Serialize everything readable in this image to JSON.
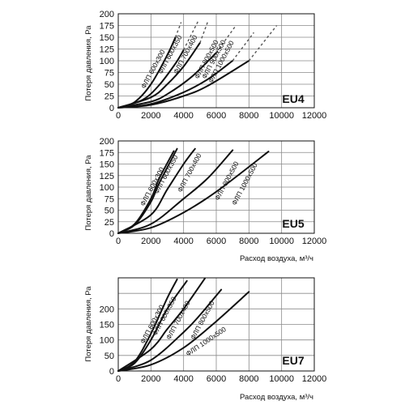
{
  "chart_data": [
    {
      "type": "line",
      "title": "EU4",
      "xlabel": "",
      "ylabel": "Потеря давления, Ра",
      "xlim": [
        0,
        12000
      ],
      "ylim": [
        0,
        200
      ],
      "x_ticks": [
        "0",
        "2000",
        "4000",
        "6000",
        "8000",
        "10000",
        "12000"
      ],
      "y_ticks": [
        "0",
        "25",
        "50",
        "75",
        "100",
        "125",
        "150",
        "175",
        "200"
      ],
      "grid": true,
      "series": [
        {
          "name": "ФЛП 600x300",
          "x": [
            0,
            1000,
            2000,
            3000,
            3500
          ],
          "y": [
            0,
            12,
            50,
            112,
            150
          ],
          "dash_to": [
            3850,
            182
          ]
        },
        {
          "name": "ФЛП 600x350",
          "x": [
            0,
            1500,
            2500,
            3500,
            4000
          ],
          "y": [
            0,
            17,
            48,
            94,
            123
          ],
          "dash_to": [
            4900,
            185
          ]
        },
        {
          "name": "ФЛП 700x400",
          "x": [
            0,
            2000,
            3000,
            4000,
            5000
          ],
          "y": [
            0,
            22,
            50,
            88,
            138
          ],
          "dash_to": [
            5500,
            185
          ]
        },
        {
          "name": "ФЛП 800x500",
          "x": [
            0,
            2000,
            3000,
            4500,
            6000
          ],
          "y": [
            0,
            13,
            29,
            66,
            117
          ],
          "dash_to": [
            7200,
            175
          ]
        },
        {
          "name": "ФЛП 900x500",
          "x": [
            0,
            2000,
            4000,
            5500,
            7000
          ],
          "y": [
            0,
            8,
            33,
            61,
            100
          ],
          "dash_to": [
            8300,
            160
          ]
        },
        {
          "name": "ФЛП 1000x500",
          "x": [
            0,
            2000,
            4000,
            5500,
            8000
          ],
          "y": [
            0,
            6,
            25,
            47,
            100
          ],
          "dash_to": [
            9700,
            175
          ]
        }
      ]
    },
    {
      "type": "line",
      "title": "EU5",
      "xlabel": "Расход воздуха, м³/ч",
      "ylabel": "Потеря давления, Ра",
      "xlim": [
        0,
        12000
      ],
      "ylim": [
        0,
        200
      ],
      "x_ticks": [
        "0",
        "2000",
        "4000",
        "6000",
        "8000",
        "10000",
        "12000"
      ],
      "y_ticks": [
        "0",
        "25",
        "50",
        "75",
        "100",
        "125",
        "150",
        "175",
        "200"
      ],
      "grid": true,
      "series": [
        {
          "name": "ФЛП 600x300",
          "x": [
            0,
            1000,
            2000,
            2500,
            3400
          ],
          "y": [
            0,
            20,
            75,
            118,
            178
          ]
        },
        {
          "name": "ФЛП 600x350",
          "x": [
            0,
            1000,
            2000,
            2500,
            3600
          ],
          "y": [
            0,
            18,
            68,
            108,
            183
          ]
        },
        {
          "name": "ФЛП 700x400",
          "x": [
            0,
            2000,
            3000,
            4000,
            4700
          ],
          "y": [
            0,
            40,
            95,
            150,
            183
          ]
        },
        {
          "name": "ФЛП 800x500",
          "x": [
            0,
            2000,
            4000,
            5500,
            7000
          ],
          "y": [
            0,
            20,
            75,
            120,
            180
          ]
        },
        {
          "name": "ФЛП 1000x500",
          "x": [
            0,
            2000,
            4000,
            6000,
            9200
          ],
          "y": [
            0,
            12,
            45,
            90,
            177
          ]
        }
      ]
    },
    {
      "type": "line",
      "title": "EU7",
      "xlabel": "Расход воздуха, м³/ч",
      "ylabel": "Потеря давления, Ра",
      "xlim": [
        0,
        12000
      ],
      "ylim": [
        0,
        300
      ],
      "x_ticks": [
        "0",
        "2000",
        "4000",
        "6000",
        "8000",
        "10000",
        "12000"
      ],
      "y_ticks": [
        "0",
        "50",
        "100",
        "150",
        "200"
      ],
      "grid": true,
      "series": [
        {
          "name": "ФЛП 600x300",
          "x": [
            0,
            1000,
            2000,
            3000,
            3600
          ],
          "y": [
            0,
            30,
            120,
            235,
            295
          ]
        },
        {
          "name": "ФЛП 600x350",
          "x": [
            0,
            1000,
            2000,
            3000,
            4200
          ],
          "y": [
            0,
            25,
            100,
            200,
            290
          ]
        },
        {
          "name": "ФЛП 700x400",
          "x": [
            0,
            2000,
            3000,
            4000,
            5300
          ],
          "y": [
            0,
            70,
            135,
            200,
            298
          ]
        },
        {
          "name": "ФЛП 800x500",
          "x": [
            0,
            2000,
            4000,
            5000,
            6300
          ],
          "y": [
            0,
            35,
            125,
            180,
            262
          ]
        },
        {
          "name": "ФЛП 1000x500",
          "x": [
            0,
            2000,
            4000,
            6000,
            8000
          ],
          "y": [
            0,
            20,
            75,
            160,
            255
          ]
        }
      ]
    }
  ]
}
